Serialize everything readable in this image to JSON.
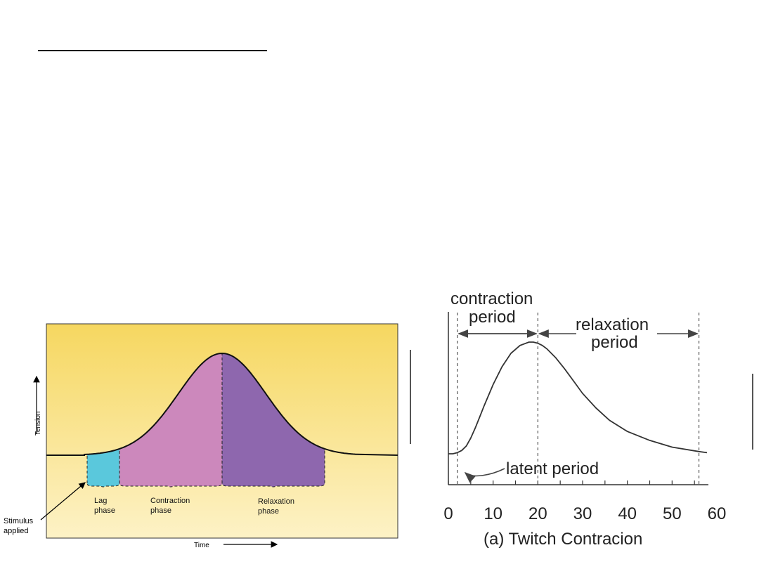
{
  "chart_data": [
    {
      "type": "area",
      "title": "",
      "xlabel": "Time",
      "ylabel": "Tension",
      "annotations": {
        "stimulus": "Stimulus applied"
      },
      "phases": [
        {
          "name": "Lag phase",
          "lines": [
            "Lag",
            "phase"
          ],
          "color": "#5ac8dc"
        },
        {
          "name": "Contraction phase",
          "lines": [
            "Contraction",
            "phase"
          ],
          "color": "#cc88bc"
        },
        {
          "name": "Relaxation phase",
          "lines": [
            "Relaxation",
            "phase"
          ],
          "color": "#8e67ae"
        }
      ],
      "background": {
        "top": "#f6d760",
        "bottom": "#fdf2c6"
      }
    },
    {
      "type": "line",
      "caption": "(a) Twitch Contracion",
      "x_ticks": [
        "0",
        "10",
        "20",
        "30",
        "40",
        "50",
        "60"
      ],
      "xlim": [
        0,
        60
      ],
      "labels": {
        "contraction_line1": "contraction",
        "contraction_line2": "period",
        "relaxation_line1": "relaxation",
        "relaxation_line2": "period",
        "latent": "latent period"
      },
      "markers_x": [
        2,
        20,
        56
      ],
      "x": [
        0,
        1,
        2,
        3,
        4,
        5,
        6,
        7,
        8,
        10,
        12,
        14,
        16,
        18,
        19,
        20,
        21,
        22,
        24,
        26,
        28,
        30,
        33,
        36,
        40,
        45,
        50,
        56
      ],
      "y": [
        0.0,
        0.0,
        0.01,
        0.03,
        0.07,
        0.14,
        0.23,
        0.33,
        0.43,
        0.62,
        0.78,
        0.9,
        0.97,
        1.0,
        1.0,
        0.99,
        0.97,
        0.94,
        0.86,
        0.76,
        0.65,
        0.54,
        0.41,
        0.3,
        0.2,
        0.12,
        0.06,
        0.02
      ]
    }
  ]
}
